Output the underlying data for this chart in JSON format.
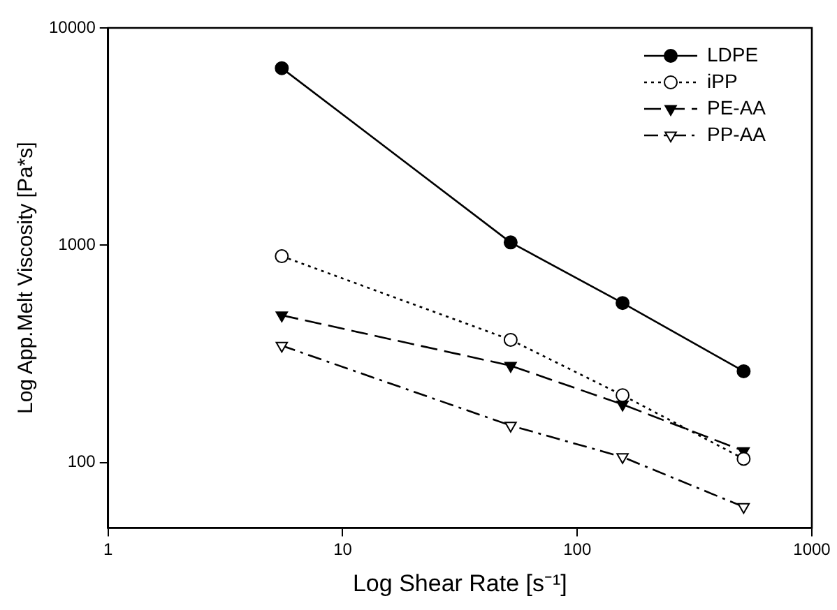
{
  "chart_data": {
    "type": "line",
    "xlabel": "Log Shear Rate [s⁻¹]",
    "ylabel": "Log App.Melt Viscosity [Pa*s]",
    "log": "xy",
    "xlim": [
      1,
      1000
    ],
    "xticks": [
      1,
      10,
      100,
      1000
    ],
    "ylim": [
      50,
      10000
    ],
    "yticks": [
      100,
      1000,
      10000
    ],
    "grid": false,
    "legend": "top right",
    "x": [
      5.5,
      52,
      156,
      512
    ],
    "series": [
      {
        "name": "LDPE",
        "color": "#000000",
        "values": [
          6530,
          1030,
          542,
          263
        ],
        "marker": "circle",
        "line_style": "solid"
      },
      {
        "name": "iPP",
        "color": "#000000",
        "values": [
          890,
          367,
          204,
          104
        ],
        "marker": "circle",
        "line_style": "dotted"
      },
      {
        "name": "PE-AA",
        "color": "#000000",
        "values": [
          476,
          279,
          185,
          113
        ],
        "marker": "triangle",
        "line_style": "dashed"
      },
      {
        "name": "PP-AA",
        "color": "#000000",
        "values": [
          345,
          148,
          106,
          62.5
        ],
        "marker": "triangle",
        "line_style": "dashdot"
      }
    ]
  }
}
